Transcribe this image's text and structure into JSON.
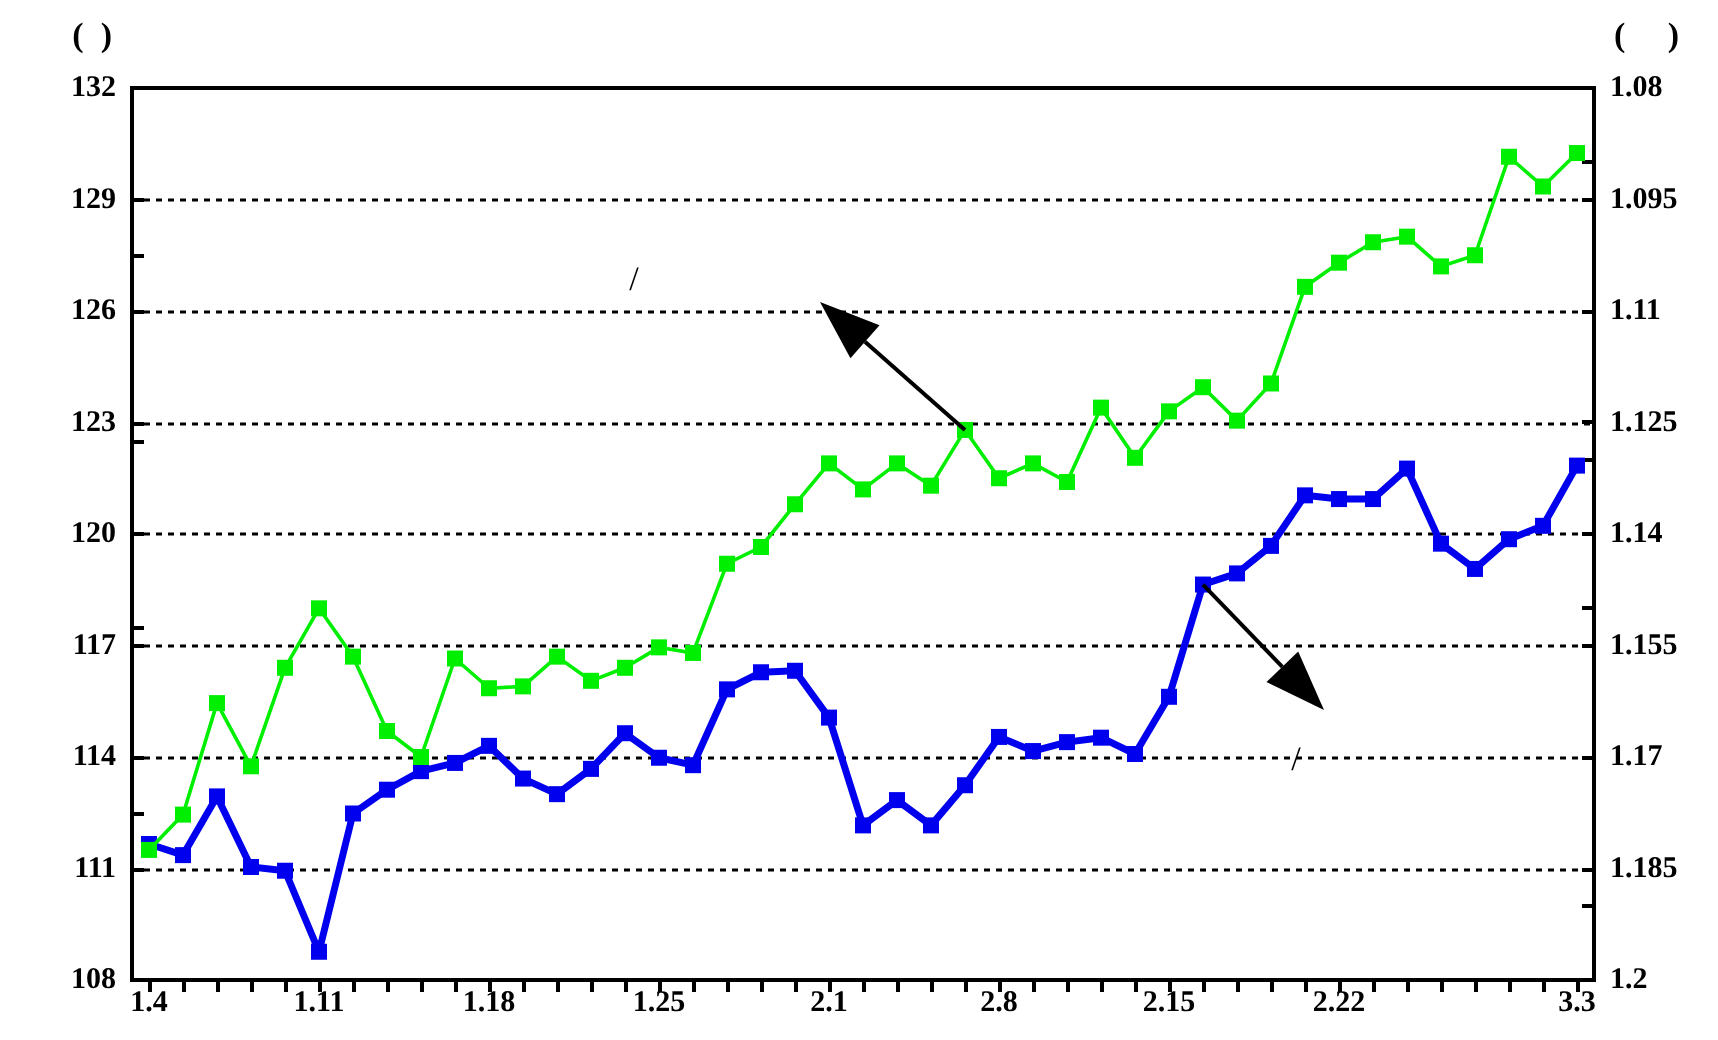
{
  "chart_data": {
    "type": "line",
    "ylabel": "(  )",
    "y2label": "(     )",
    "categories": [
      "1.4",
      null,
      null,
      null,
      null,
      "1.11",
      null,
      null,
      null,
      null,
      "1.18",
      null,
      null,
      null,
      null,
      "1.25",
      null,
      null,
      null,
      null,
      "2.1",
      null,
      null,
      null,
      null,
      "2.8",
      null,
      null,
      null,
      null,
      "2.15",
      null,
      null,
      null,
      null,
      "2.22",
      null,
      null,
      null,
      null,
      null,
      null,
      "3.3"
    ],
    "series": [
      {
        "color": "#00ee00",
        "values": [
          111.5,
          112.45,
          115.45,
          113.75,
          116.4,
          118.0,
          116.7,
          114.7,
          114.0,
          116.65,
          115.85,
          115.9,
          116.7,
          116.05,
          116.4,
          116.95,
          116.8,
          119.2,
          119.65,
          120.8,
          121.9,
          121.2,
          121.9,
          121.3,
          122.8,
          121.5,
          121.9,
          121.4,
          123.4,
          122.05,
          123.3,
          123.95,
          123.05,
          124.05,
          126.65,
          127.3,
          127.85,
          128.0,
          127.2,
          127.5,
          130.15,
          129.35,
          130.25
        ]
      },
      {
        "color": "#0000ee",
        "axis": "y2",
        "values": [
          1.1817,
          1.1832,
          1.1753,
          1.1848,
          1.1853,
          1.1962,
          1.1776,
          1.1744,
          1.1719,
          1.1708,
          1.1685,
          1.1729,
          1.175,
          1.1716,
          1.1668,
          1.1701,
          1.1711,
          1.1609,
          1.1586,
          1.1584,
          1.1647,
          1.1792,
          1.1758,
          1.1792,
          1.1738,
          1.1673,
          1.1692,
          1.168,
          1.1674,
          1.1696,
          1.1619,
          1.1468,
          1.1453,
          1.1416,
          1.1348,
          1.1353,
          1.1353,
          1.1312,
          1.1413,
          1.1447,
          1.1407,
          1.1389,
          1.1308
        ]
      }
    ],
    "ylim": [
      108,
      132
    ],
    "yticks": [
      108,
      111,
      114,
      117,
      120,
      123,
      126,
      129,
      132
    ],
    "y2lim": [
      1.2,
      1.08
    ],
    "y2ticks": [
      1.2,
      1.185,
      1.17,
      1.155,
      1.14,
      1.125,
      1.11,
      1.095,
      1.08
    ],
    "grid": "y",
    "marker": "square",
    "line_style": "solid",
    "annotations": [
      "/",
      "/"
    ]
  }
}
